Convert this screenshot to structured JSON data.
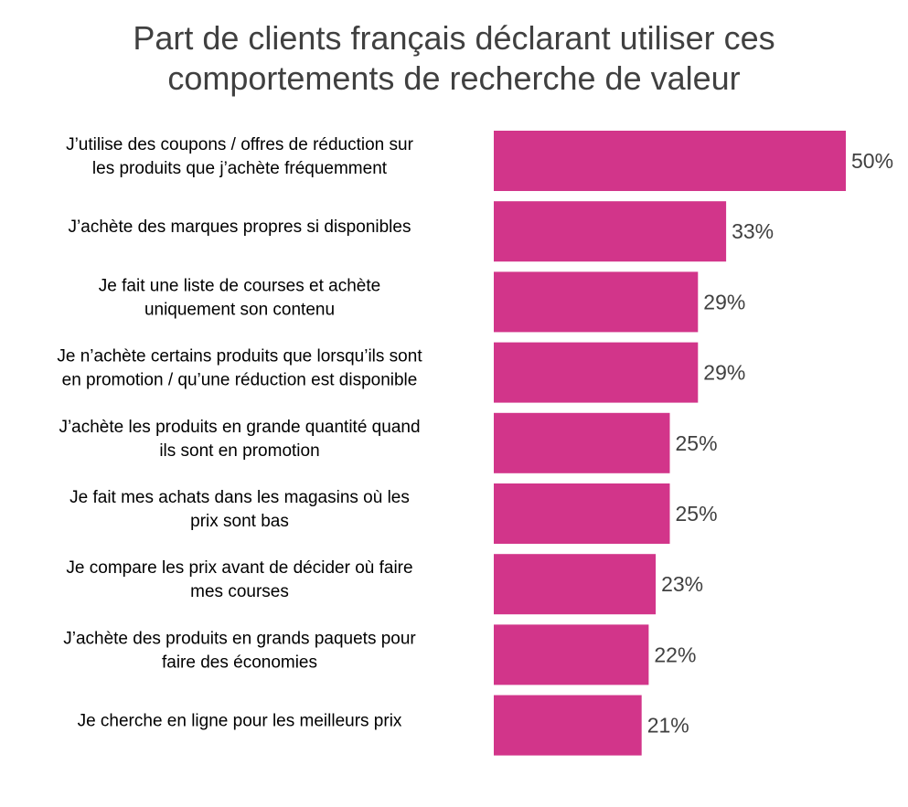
{
  "chart_data": {
    "type": "bar",
    "orientation": "horizontal",
    "title_lines": [
      "Part de clients français déclarant utiliser ces",
      "comportements de recherche de valeur"
    ],
    "categories": [
      [
        "J’utilise des coupons / offres de réduction sur",
        "les produits que j’achète fréquemment"
      ],
      [
        "J’achète des marques propres si disponibles"
      ],
      [
        "Je fait une liste de courses et achète",
        "uniquement son contenu"
      ],
      [
        "Je n’achète certains produits que lorsqu’ils sont",
        "en promotion / qu’une réduction est disponible"
      ],
      [
        "J’achète les produits en grande quantité quand",
        "ils sont en promotion"
      ],
      [
        "Je fait mes achats dans les magasins où les",
        "prix sont bas"
      ],
      [
        "Je compare les prix avant de décider où faire",
        "mes courses"
      ],
      [
        "J’achète des produits en grands paquets pour",
        "faire des économies"
      ],
      [
        "Je cherche en ligne pour les meilleurs prix"
      ]
    ],
    "values": [
      50,
      33,
      29,
      29,
      25,
      25,
      23,
      22,
      21
    ],
    "value_labels": [
      "50%",
      "33%",
      "29%",
      "29%",
      "25%",
      "25%",
      "23%",
      "22%",
      "21%"
    ],
    "unit": "%",
    "xlim": [
      0,
      50
    ],
    "grid": false,
    "legend": "none",
    "bar_color": "#D2358A"
  }
}
